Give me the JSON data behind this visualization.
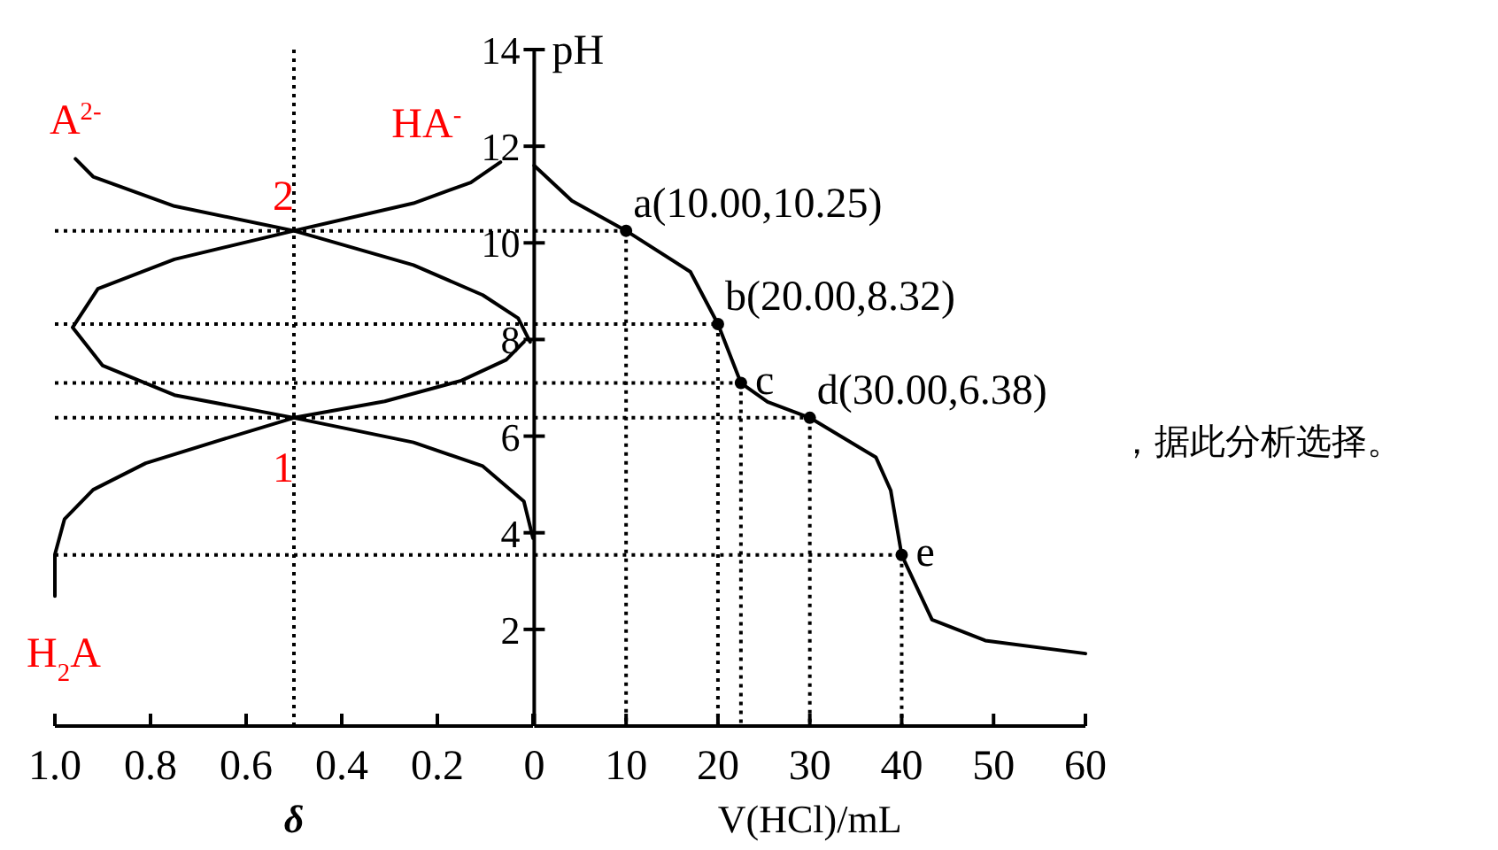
{
  "chart_data": [
    {
      "type": "line",
      "xlabel": "δ",
      "xlim": [
        1,
        0
      ],
      "ylim": [
        0,
        14
      ],
      "tick_labels": "x",
      "xticks": [
        {
          "value": 1,
          "label": "1.0"
        },
        {
          "value": 0.8,
          "label": "0.8"
        },
        {
          "value": 0.6,
          "label": "0.6"
        },
        {
          "value": 0.4,
          "label": "0.4"
        },
        {
          "value": 0.2,
          "label": "0.2"
        },
        {
          "value": 0,
          "label": null
        }
      ],
      "series": [
        {
          "name": "A$^{2-}$",
          "color": "#000000",
          "x": [
            0.957,
            0.92,
            0.75,
            0.5,
            0.25,
            0.105,
            0.031,
            0.006
          ],
          "values": [
            11.74,
            11.37,
            10.76,
            10.25,
            9.54,
            8.92,
            8.44,
            7.95
          ]
        },
        {
          "name": "HA$^{-}$",
          "color": "#000000",
          "x": [
            0,
            0.019,
            0.105,
            0.25,
            0.5,
            0.75,
            0.9,
            0.963,
            0.91,
            0.75,
            0.5,
            0.25,
            0.13,
            0.068
          ],
          "values": [
            3.89,
            4.65,
            5.38,
            5.87,
            6.38,
            6.85,
            7.46,
            8.25,
            9.05,
            9.66,
            10.25,
            10.82,
            11.25,
            11.67
          ]
        },
        {
          "name": "H$_{2}$A",
          "color": "#000000",
          "x": [
            1.0,
            1.0,
            0.98,
            0.92,
            0.81,
            0.65,
            0.5,
            0.31,
            0.15,
            0.056,
            0.019
          ],
          "values": [
            2.69,
            3.55,
            4.28,
            4.89,
            5.44,
            5.93,
            6.38,
            6.72,
            7.15,
            7.58,
            7.95
          ]
        }
      ],
      "annotations": [
        {
          "text": "1",
          "x": 0.5,
          "y": 6.38
        },
        {
          "text": "2",
          "x": 0.5,
          "y": 10.25
        }
      ],
      "ref_lines": [
        {
          "axis": "y",
          "value": 10.25,
          "line_style": "dotted"
        },
        {
          "axis": "y",
          "value": 8.32,
          "line_style": "dotted"
        },
        {
          "axis": "y",
          "value": 7.1,
          "line_style": "dotted"
        },
        {
          "axis": "y",
          "value": 6.38,
          "line_style": "dotted"
        },
        {
          "axis": "y",
          "value": 3.54,
          "line_style": "dotted"
        },
        {
          "axis": "x",
          "value": 0.5,
          "line_style": "dotted"
        }
      ]
    },
    {
      "type": "line",
      "xlabel": "V(HCl)/mL",
      "ylabel": "pH",
      "xlim": [
        0,
        60
      ],
      "ylim": [
        0,
        14
      ],
      "xticks": [
        0,
        10,
        20,
        30,
        40,
        50,
        60
      ],
      "yticks": [
        2,
        4,
        6,
        8,
        10,
        12,
        14
      ],
      "series": [
        {
          "color": "#000000",
          "x": [
            0,
            4.1,
            10,
            17,
            20,
            22.5,
            25.4,
            30,
            37.2,
            38.8,
            40,
            43.3,
            49.1,
            60
          ],
          "values": [
            11.6,
            10.87,
            10.25,
            9.4,
            8.32,
            7.1,
            6.71,
            6.38,
            5.56,
            4.88,
            3.54,
            2.2,
            1.77,
            1.5
          ]
        }
      ],
      "annotations": [
        {
          "text": "a(10.00,10.25)",
          "x": 10,
          "y": 10.25
        },
        {
          "text": "b(20.00,8.32)",
          "x": 20,
          "y": 8.32
        },
        {
          "text": "c",
          "x": 22.5,
          "y": 7.1
        },
        {
          "text": "d(30.00,6.38)",
          "x": 30,
          "y": 6.38
        },
        {
          "text": "e",
          "x": 40,
          "y": 3.54
        },
        "，据此分析选择。"
      ]
    }
  ]
}
